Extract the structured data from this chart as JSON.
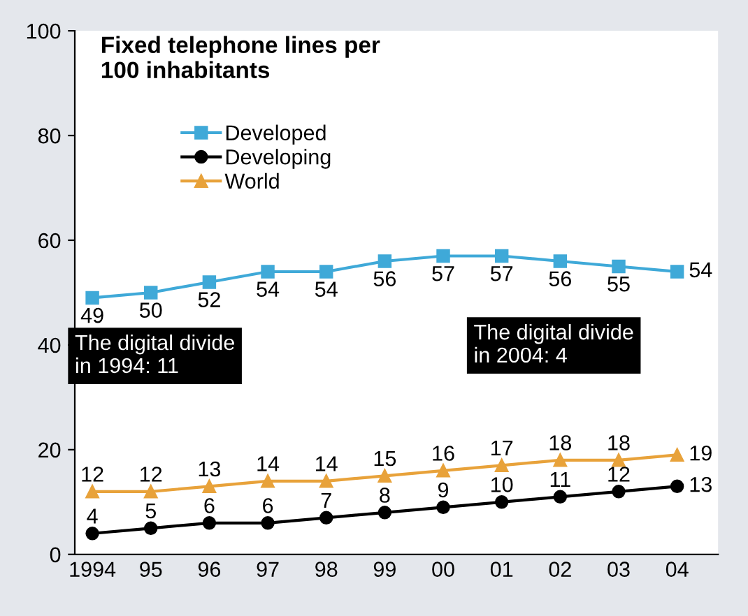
{
  "chart_data": {
    "type": "line",
    "title": "Fixed telephone lines per\n100 inhabitants",
    "categories": [
      "1994",
      "95",
      "96",
      "97",
      "98",
      "99",
      "00",
      "01",
      "02",
      "03",
      "04"
    ],
    "series": [
      {
        "name": "Developed",
        "color": "#3fa9d8",
        "marker": "square",
        "values": [
          49,
          50,
          52,
          54,
          54,
          56,
          57,
          57,
          56,
          55,
          54
        ]
      },
      {
        "name": "Developing",
        "color": "#000000",
        "marker": "circle",
        "values": [
          4,
          5,
          6,
          6,
          7,
          8,
          9,
          10,
          11,
          12,
          13
        ]
      },
      {
        "name": "World",
        "color": "#e8a23a",
        "marker": "triangle",
        "values": [
          12,
          12,
          13,
          14,
          14,
          15,
          16,
          17,
          18,
          18,
          19
        ]
      }
    ],
    "ylim": [
      0,
      100
    ],
    "yticks": [
      0,
      20,
      40,
      60,
      80,
      100
    ],
    "grid": false,
    "legend": "top",
    "data_labels": true,
    "line_style": "solid",
    "annotations": [
      "The digital divide\nin 1994: 11",
      "The digital divide\nin 2004: 4"
    ]
  }
}
